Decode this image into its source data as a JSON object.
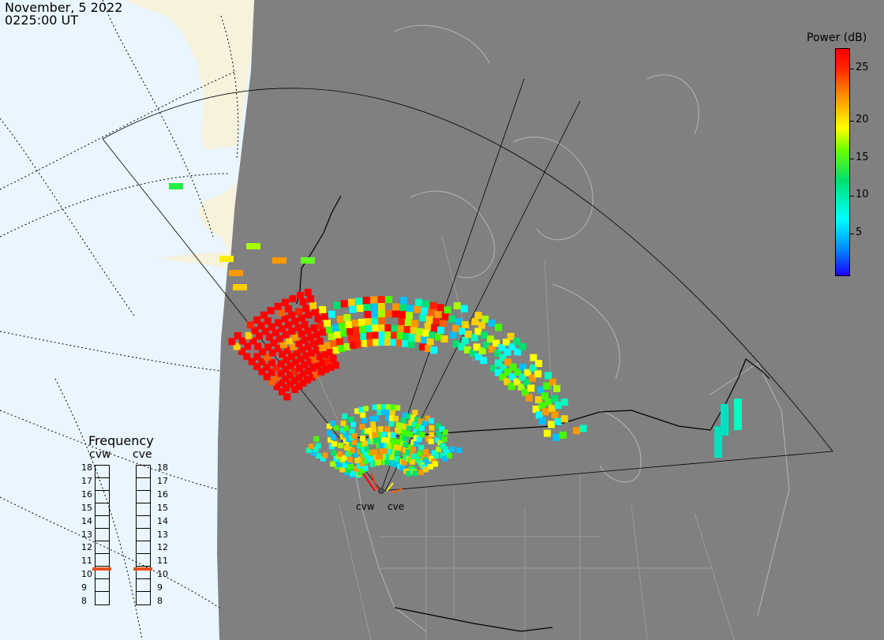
{
  "header": {
    "date": "November, 5 2022",
    "time": "0225:00 UT"
  },
  "legend": {
    "title": "Power (dB)",
    "ticks": [
      "25",
      "20",
      "15",
      "10",
      "5"
    ],
    "colors": [
      "#1a00ff",
      "#0090ff",
      "#00ffff",
      "#00e070",
      "#66ff00",
      "#ffff00",
      "#ff9900",
      "#ff2000",
      "#ff0000"
    ]
  },
  "frequency": {
    "title": "Frequency",
    "radars": [
      {
        "name": "cvw",
        "selected_mhz": 10.7
      },
      {
        "name": "cve",
        "selected_mhz": 10.7
      }
    ],
    "scale": [
      "18",
      "17",
      "16",
      "15",
      "14",
      "13",
      "12",
      "11",
      "10",
      "9",
      "8"
    ]
  },
  "sites": [
    {
      "label": "cvw"
    },
    {
      "label": "cve"
    }
  ]
}
